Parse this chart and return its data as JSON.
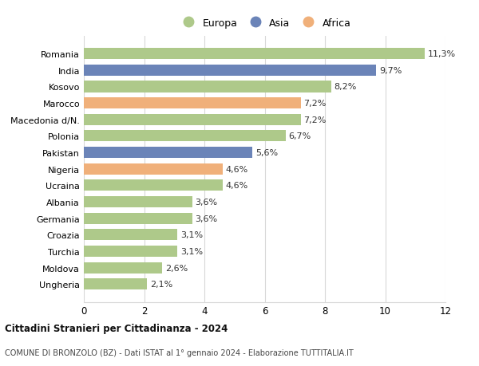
{
  "countries": [
    "Romania",
    "India",
    "Kosovo",
    "Marocco",
    "Macedonia d/N.",
    "Polonia",
    "Pakistan",
    "Nigeria",
    "Ucraina",
    "Albania",
    "Germania",
    "Croazia",
    "Turchia",
    "Moldova",
    "Ungheria"
  ],
  "values": [
    11.3,
    9.7,
    8.2,
    7.2,
    7.2,
    6.7,
    5.6,
    4.6,
    4.6,
    3.6,
    3.6,
    3.1,
    3.1,
    2.6,
    2.1
  ],
  "labels": [
    "11,3%",
    "9,7%",
    "8,2%",
    "7,2%",
    "7,2%",
    "6,7%",
    "5,6%",
    "4,6%",
    "4,6%",
    "3,6%",
    "3,6%",
    "3,1%",
    "3,1%",
    "2,6%",
    "2,1%"
  ],
  "continents": [
    "Europa",
    "Asia",
    "Europa",
    "Africa",
    "Europa",
    "Europa",
    "Asia",
    "Africa",
    "Europa",
    "Europa",
    "Europa",
    "Europa",
    "Europa",
    "Europa",
    "Europa"
  ],
  "colors": {
    "Europa": "#aec98a",
    "Asia": "#6b84b8",
    "Africa": "#f0b07a"
  },
  "legend_labels": [
    "Europa",
    "Asia",
    "Africa"
  ],
  "legend_colors": [
    "#aec98a",
    "#6b84b8",
    "#f0b07a"
  ],
  "xlim": [
    0,
    12
  ],
  "xticks": [
    0,
    2,
    4,
    6,
    8,
    10,
    12
  ],
  "title": "Cittadini Stranieri per Cittadinanza - 2024",
  "subtitle": "COMUNE DI BRONZOLO (BZ) - Dati ISTAT al 1° gennaio 2024 - Elaborazione TUTTITALIA.IT",
  "bg_color": "#ffffff",
  "grid_color": "#d8d8d8",
  "bar_height": 0.68
}
